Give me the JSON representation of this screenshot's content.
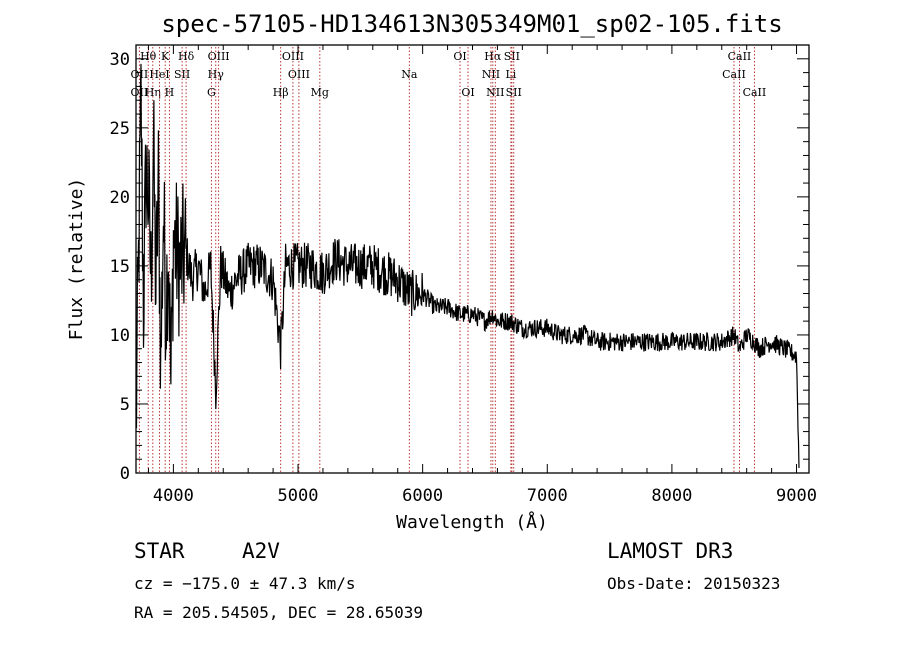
{
  "chart_data": {
    "type": "line",
    "title": "spec-57105-HD134613N305349M01_sp02-105.fits",
    "xlabel": "Wavelength (Å)",
    "ylabel": "Flux (relative)",
    "xlim": [
      3700,
      9100
    ],
    "ylim": [
      0,
      31
    ],
    "xticks": [
      4000,
      5000,
      6000,
      7000,
      8000,
      9000
    ],
    "yticks": [
      0,
      5,
      10,
      15,
      20,
      25,
      30
    ],
    "series": [
      {
        "name": "flux",
        "x": [
          3700,
          3720,
          3740,
          3760,
          3780,
          3800,
          3820,
          3840,
          3860,
          3880,
          3900,
          3920,
          3940,
          3960,
          3980,
          4000,
          4050,
          4100,
          4150,
          4200,
          4250,
          4300,
          4340,
          4380,
          4450,
          4500,
          4600,
          4700,
          4800,
          4861,
          4900,
          5000,
          5100,
          5200,
          5300,
          5400,
          5500,
          5600,
          5700,
          5800,
          5900,
          6000,
          6100,
          6200,
          6300,
          6400,
          6500,
          6563,
          6600,
          6700,
          6800,
          6900,
          7000,
          7100,
          7200,
          7300,
          7400,
          7500,
          7600,
          7700,
          7800,
          7900,
          8000,
          8100,
          8200,
          8300,
          8400,
          8500,
          8542,
          8600,
          8662,
          8700,
          8800,
          8900,
          9000,
          9020
        ],
        "y": [
          3,
          15,
          27,
          12,
          22,
          20,
          14,
          24,
          13,
          21,
          8,
          19,
          12,
          17,
          6,
          17,
          15,
          16,
          14,
          15,
          13,
          15,
          6,
          15,
          13,
          14,
          15,
          15,
          14,
          9,
          15,
          15,
          15,
          14.5,
          15.5,
          15,
          15,
          15,
          14.5,
          14,
          13,
          13,
          12,
          12,
          11.5,
          11.5,
          11,
          11.5,
          11,
          11,
          10.5,
          10.5,
          10.5,
          10,
          10,
          10,
          9.5,
          9.5,
          9.5,
          9.5,
          9.5,
          9.5,
          9.5,
          9.5,
          9.5,
          9.5,
          9.5,
          10,
          9,
          10,
          9.5,
          9,
          9.5,
          9,
          8.5,
          0.5
        ]
      }
    ],
    "line_markers": [
      {
        "label": "OII",
        "x": 3727,
        "row": 1
      },
      {
        "label": "Hθ",
        "x": 3798,
        "row": 0
      },
      {
        "label": "OII",
        "x": 3727,
        "row": 2
      },
      {
        "label": "Hη",
        "x": 3835,
        "row": 2
      },
      {
        "label": "HeI",
        "x": 3889,
        "row": 1
      },
      {
        "label": "K",
        "x": 3934,
        "row": 0
      },
      {
        "label": "H",
        "x": 3968,
        "row": 2
      },
      {
        "label": "SII",
        "x": 4070,
        "row": 1
      },
      {
        "label": "Hδ",
        "x": 4102,
        "row": 0
      },
      {
        "label": "OIII",
        "x": 4363,
        "row": 0
      },
      {
        "label": "Hγ",
        "x": 4340,
        "row": 1
      },
      {
        "label": "G",
        "x": 4305,
        "row": 2
      },
      {
        "label": "Hβ",
        "x": 4861,
        "row": 2
      },
      {
        "label": "OIII",
        "x": 4959,
        "row": 0
      },
      {
        "label": "OIII",
        "x": 5007,
        "row": 1
      },
      {
        "label": "Mg",
        "x": 5175,
        "row": 2
      },
      {
        "label": "Na",
        "x": 5893,
        "row": 1
      },
      {
        "label": "OI",
        "x": 6300,
        "row": 0
      },
      {
        "label": "OI",
        "x": 6364,
        "row": 2
      },
      {
        "label": "Hα",
        "x": 6563,
        "row": 0
      },
      {
        "label": "NII",
        "x": 6548,
        "row": 1
      },
      {
        "label": "NII",
        "x": 6583,
        "row": 2
      },
      {
        "label": "SII",
        "x": 6716,
        "row": 0
      },
      {
        "label": "Li",
        "x": 6708,
        "row": 1
      },
      {
        "label": "SII",
        "x": 6731,
        "row": 2
      },
      {
        "label": "CaII",
        "x": 8542,
        "row": 0
      },
      {
        "label": "CaII",
        "x": 8498,
        "row": 1
      },
      {
        "label": "CaII",
        "x": 8662,
        "row": 2
      }
    ]
  },
  "info": {
    "class": "STAR",
    "subclass": "A2V",
    "survey": "LAMOST DR3",
    "redshift": "cz = −175.0 ± 47.3 km/s",
    "obs_date": "Obs-Date: 20150323",
    "coords": "RA = 205.54505, DEC =  28.65039"
  }
}
